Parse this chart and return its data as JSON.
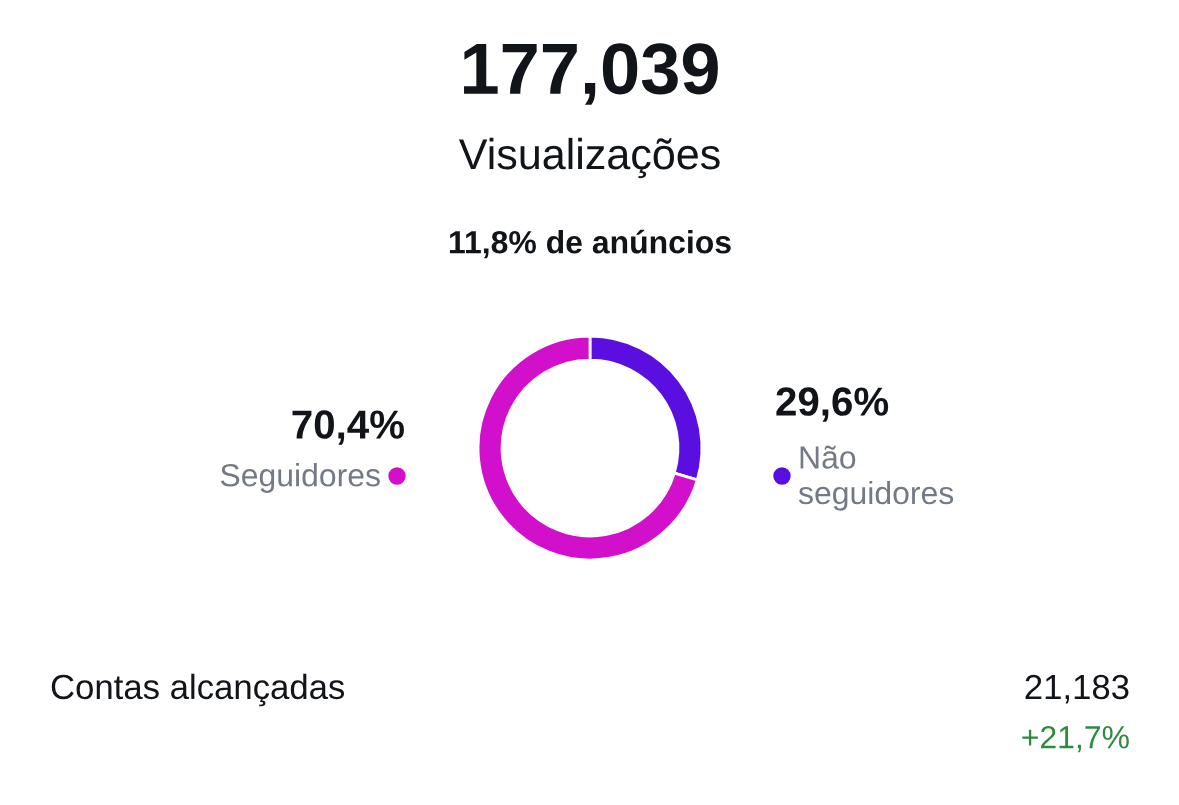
{
  "chart_data": {
    "type": "donut",
    "title": "177,039",
    "subtitle": "Visualizações",
    "categories": [
      "Não seguidores",
      "Seguidores"
    ],
    "values": [
      29.6,
      70.4
    ],
    "value_labels": [
      "29,6%",
      "70,4%"
    ],
    "colors": [
      "#5a0ee0",
      "#d20fca"
    ],
    "legend": "right",
    "annotations": [
      "11,8% de anúncios",
      "Contas alcançadas",
      "21,183",
      "+21,7%"
    ]
  }
}
